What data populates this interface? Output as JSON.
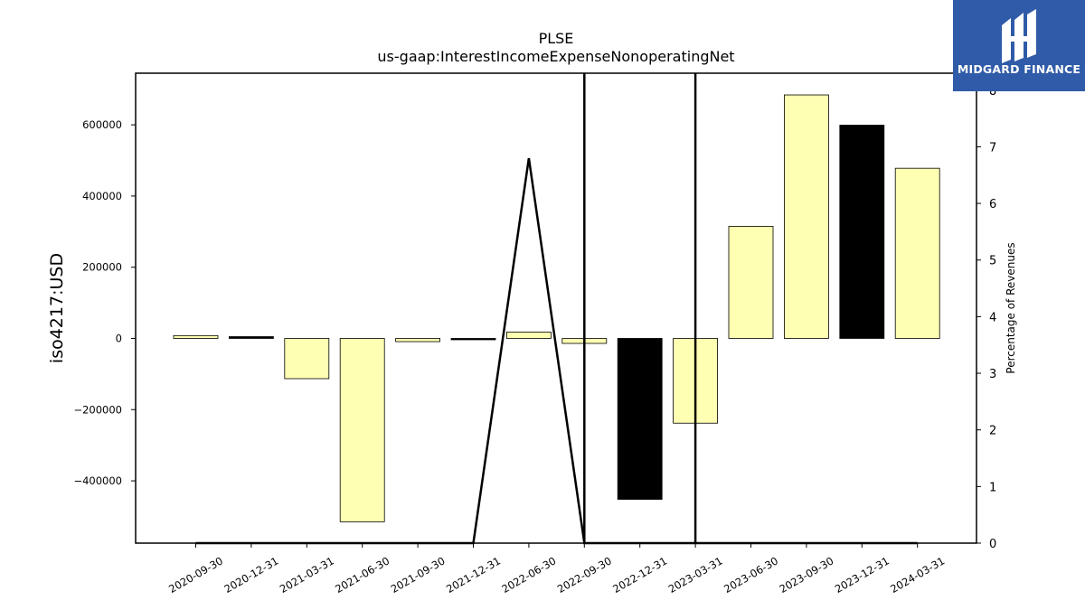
{
  "chart_data": {
    "type": "bar",
    "title": "PLSE",
    "subtitle": "us-gaap:InterestIncomeExpenseNonoperatingNet",
    "ylabel": "iso4217:USD",
    "y2label": "Percentage of Revenues",
    "categories": [
      "2020-09-30",
      "2020-12-31",
      "2021-03-31",
      "2021-06-30",
      "2021-09-30",
      "2021-12-31",
      "2022-06-30",
      "2022-09-30",
      "2022-12-31",
      "2023-03-31",
      "2023-06-30",
      "2023-09-30",
      "2023-12-31",
      "2024-03-31"
    ],
    "ylim": [
      -575000,
      745000
    ],
    "yticks": [
      -400000,
      -200000,
      0,
      200000,
      400000,
      600000
    ],
    "ytick_labels": [
      "−400000",
      "−200000",
      "0",
      "200000",
      "400000",
      "600000"
    ],
    "y2lim": [
      0,
      8.3
    ],
    "y2ticks": [
      0,
      1,
      2,
      3,
      4,
      5,
      6,
      7,
      8
    ],
    "series": [
      {
        "values": [
          8000,
          5000,
          -113000,
          -515000,
          -9000,
          -3000,
          18000,
          -14000,
          -452000,
          -238000,
          315000,
          684000,
          599000,
          478000
        ],
        "colors": [
          "#ffffb3",
          "#000000",
          "#ffffb3",
          "#ffffb3",
          "#ffffb3",
          "#000000",
          "#ffffb3",
          "#ffffb3",
          "#000000",
          "#ffffb3",
          "#ffffb3",
          "#ffffb3",
          "#000000",
          "#ffffb3"
        ]
      }
    ],
    "line_series": {
      "axis": "y2",
      "points": [
        {
          "x": 0,
          "y": 0
        },
        {
          "x": 1,
          "y": 0
        },
        {
          "x": 2,
          "y": 0
        },
        {
          "x": 3,
          "y": 0
        },
        {
          "x": 5,
          "y": 0
        },
        {
          "x": 6,
          "y": 6.8
        },
        {
          "x": 7,
          "y": 0
        },
        {
          "x": 7,
          "y": 8.3
        },
        {
          "x": 7,
          "y": 0
        },
        {
          "x": 9,
          "y": 0
        },
        {
          "x": 9,
          "y": 8.3
        },
        {
          "x": 9,
          "y": 0
        },
        {
          "x": 10,
          "y": 0
        },
        {
          "x": 11,
          "y": 0
        },
        {
          "x": 12,
          "y": 0
        },
        {
          "x": 13,
          "y": 0
        }
      ]
    },
    "grid": false,
    "legend": "none"
  },
  "logo": {
    "text": "MIDGARD FINANCE",
    "bg": "#2f5ba8",
    "icon": "midgard-logo-icon"
  }
}
